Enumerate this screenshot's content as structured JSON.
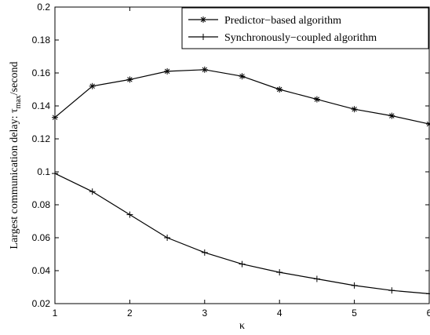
{
  "chart_data": {
    "type": "line",
    "title": "",
    "xlabel": "κ",
    "ylabel": "Largest communication delay: τ",
    "ylabel_subscript": "max",
    "ylabel_suffix": "/second",
    "xlim": [
      1,
      6
    ],
    "ylim": [
      0.02,
      0.2
    ],
    "x_ticks": [
      1,
      2,
      3,
      4,
      5,
      6
    ],
    "x_tick_labels": [
      "1",
      "2",
      "3",
      "4",
      "5",
      "6"
    ],
    "y_ticks": [
      0.02,
      0.04,
      0.06,
      0.08,
      0.1,
      0.12,
      0.14,
      0.16,
      0.18,
      0.2
    ],
    "y_tick_labels": [
      "0.02",
      "0.04",
      "0.06",
      "0.08",
      "0.1",
      "0.12",
      "0.14",
      "0.16",
      "0.18",
      "0.2"
    ],
    "grid": false,
    "legend_position": "top-right",
    "series": [
      {
        "name": "Predictor−based algorithm",
        "marker": "asterisk",
        "x": [
          1,
          1.5,
          2,
          2.5,
          3,
          3.5,
          4,
          4.5,
          5,
          5.5,
          6
        ],
        "values": [
          0.133,
          0.152,
          0.156,
          0.161,
          0.162,
          0.158,
          0.15,
          0.144,
          0.138,
          0.134,
          0.129
        ]
      },
      {
        "name": "Synchronously−coupled algorithm",
        "marker": "plus",
        "x": [
          1,
          1.5,
          2,
          2.5,
          3,
          3.5,
          4,
          4.5,
          5,
          5.5,
          6
        ],
        "values": [
          0.099,
          0.088,
          0.074,
          0.06,
          0.051,
          0.044,
          0.039,
          0.035,
          0.031,
          0.028,
          0.026
        ]
      }
    ],
    "colors": {
      "line": "#000000",
      "background": "#ffffff"
    }
  }
}
